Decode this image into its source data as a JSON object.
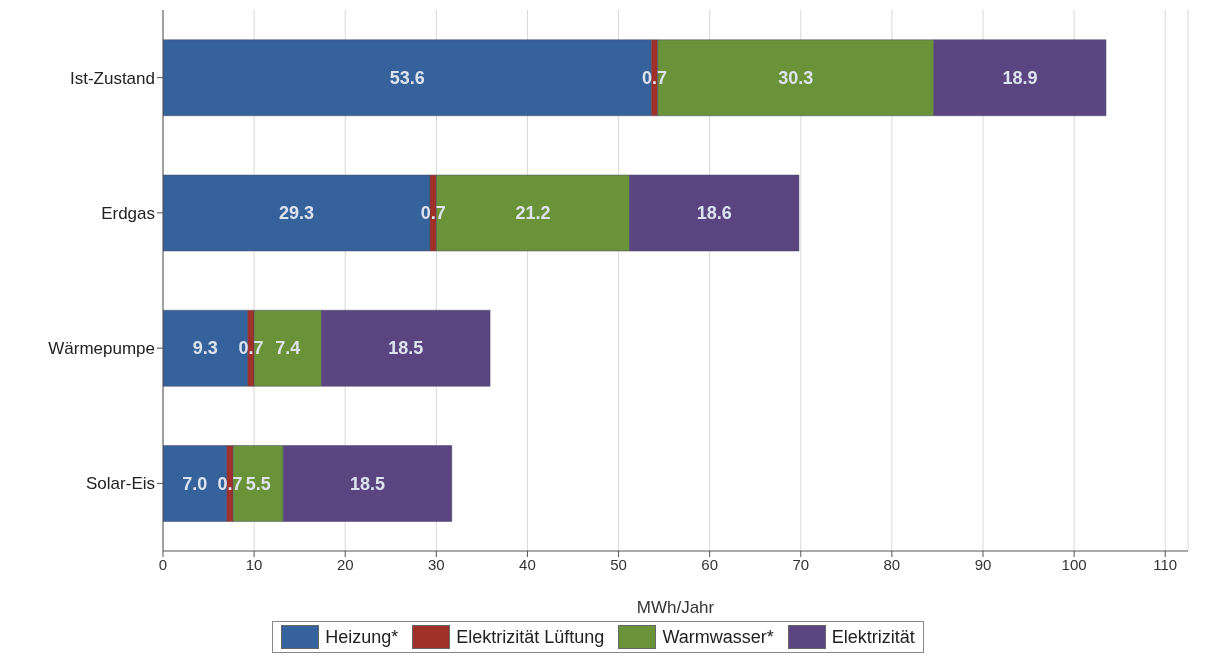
{
  "chart_data": {
    "type": "bar",
    "orientation": "horizontal",
    "stacked": true,
    "xlabel": "MWh/Jahr",
    "categories": [
      "Ist-Zustand",
      "Erdgas",
      "Wärmepumpe",
      "Solar-Eis"
    ],
    "series": [
      {
        "name": "Heizung*",
        "color": "#35629a",
        "values": [
          53.6,
          29.3,
          9.3,
          7.0
        ],
        "value_labels": [
          "53.6",
          "29.3",
          "9.3",
          "7.0"
        ]
      },
      {
        "name": "Elektrizität Lüftung",
        "color": "#a0302a",
        "values": [
          0.7,
          0.7,
          0.7,
          0.7
        ],
        "value_labels": [
          "0.7",
          "0.7",
          "0.7",
          "0.7"
        ]
      },
      {
        "name": "Warmwasser*",
        "color": "#6a9238",
        "values": [
          30.3,
          21.2,
          7.4,
          5.5
        ],
        "value_labels": [
          "30.3",
          "21.2",
          "7.4",
          "5.5"
        ]
      },
      {
        "name": "Elektrizität",
        "color": "#5a4580",
        "values": [
          18.9,
          18.6,
          18.5,
          18.5
        ],
        "value_labels": [
          "18.9",
          "18.6",
          "18.5",
          "18.5"
        ]
      }
    ],
    "xlim": [
      0,
      112.5
    ],
    "xticks": [
      0,
      10,
      20,
      30,
      40,
      50,
      60,
      70,
      80,
      90,
      100,
      110
    ],
    "grid": "x",
    "legend": "bottom"
  }
}
